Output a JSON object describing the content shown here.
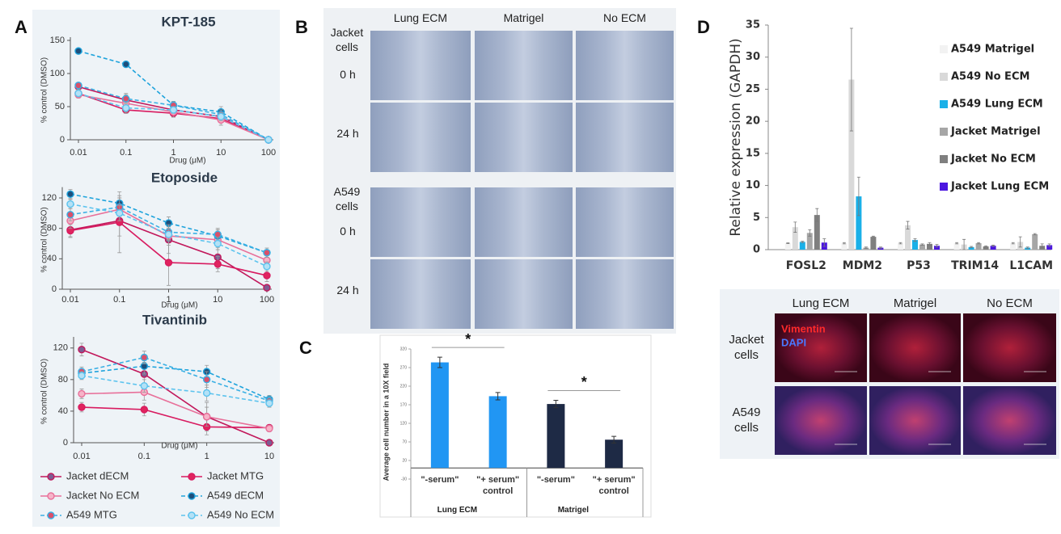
{
  "panel_labels": [
    "A",
    "B",
    "C",
    "D"
  ],
  "panel_a_legend": [
    {
      "name": "Jacket dECM",
      "color": "#c2185b",
      "marker": "#7e5d92",
      "dashed": false
    },
    {
      "name": "Jacket MTG",
      "color": "#d81b60",
      "marker": "#e0245e",
      "dashed": false
    },
    {
      "name": "Jacket No ECM",
      "color": "#e8709a",
      "marker": "#f6b3c8",
      "dashed": false
    },
    {
      "name": "A549 dECM",
      "color": "#1ea3dc",
      "marker": "#1d4f7c",
      "dashed": true
    },
    {
      "name": "A549 MTG",
      "color": "#3bb0e4",
      "marker": "#d9506a",
      "dashed": true
    },
    {
      "name": "A549 No ECM",
      "color": "#5cc3ee",
      "marker": "#b4e1f6",
      "dashed": true
    }
  ],
  "chart_data": [
    {
      "type": "line",
      "title": "KPT-185",
      "x_label": "Drug (μM)",
      "y_label": "% control (DMSO)",
      "x": [
        0.01,
        0.1,
        1,
        10,
        100
      ],
      "xlim": [
        0.01,
        100
      ],
      "xticks": [
        0.01,
        0.1,
        1,
        10,
        100
      ],
      "log_x": true,
      "ylim": [
        0,
        150
      ],
      "yticks": [
        0,
        50,
        100,
        150
      ],
      "series": [
        {
          "values": [
            80,
            60,
            45,
            35,
            0
          ],
          "errors": [
            5,
            8,
            6,
            5,
            0
          ]
        },
        {
          "values": [
            70,
            45,
            40,
            32,
            0
          ],
          "errors": [
            6,
            5,
            5,
            6,
            0
          ]
        },
        {
          "values": [
            68,
            55,
            42,
            30,
            0
          ],
          "errors": [
            5,
            15,
            8,
            8,
            0
          ]
        },
        {
          "values": [
            134,
            114,
            52,
            42,
            0
          ],
          "errors": [
            4,
            3,
            6,
            8,
            0
          ]
        },
        {
          "values": [
            82,
            62,
            52,
            38,
            0
          ],
          "errors": [
            4,
            6,
            5,
            7,
            0
          ]
        },
        {
          "values": [
            70,
            48,
            45,
            35,
            0
          ],
          "errors": [
            5,
            6,
            5,
            6,
            0
          ]
        }
      ]
    },
    {
      "type": "line",
      "title": "Etoposide",
      "x_label": "Drug (μM)",
      "y_label": "% control (DMSO)",
      "x": [
        0.01,
        0.1,
        1,
        10,
        100
      ],
      "xlim": [
        0.01,
        100
      ],
      "xticks": [
        0.01,
        0.1,
        1,
        10,
        100
      ],
      "log_x": true,
      "ylim": [
        0,
        130
      ],
      "yticks": [
        0,
        40,
        80,
        120
      ],
      "series": [
        {
          "values": [
            78,
            90,
            65,
            42,
            2
          ],
          "errors": [
            10,
            20,
            18,
            15,
            4
          ]
        },
        {
          "values": [
            77,
            88,
            35,
            33,
            18
          ],
          "errors": [
            8,
            40,
            30,
            10,
            8
          ]
        },
        {
          "values": [
            90,
            105,
            70,
            65,
            38
          ],
          "errors": [
            10,
            15,
            12,
            10,
            8
          ]
        },
        {
          "values": [
            125,
            113,
            87,
            70,
            48
          ],
          "errors": [
            6,
            10,
            8,
            8,
            6
          ]
        },
        {
          "values": [
            98,
            108,
            75,
            72,
            48
          ],
          "errors": [
            8,
            12,
            10,
            8,
            6
          ]
        },
        {
          "values": [
            112,
            100,
            72,
            60,
            30
          ],
          "errors": [
            6,
            10,
            8,
            8,
            6
          ]
        }
      ]
    },
    {
      "type": "line",
      "title": "Tivantinib",
      "x_label": "Drug (μM)",
      "y_label": "% control (DMSO)",
      "x": [
        0.01,
        0.1,
        1,
        10
      ],
      "xlim": [
        0.01,
        10
      ],
      "xticks": [
        0.01,
        0.1,
        1,
        10
      ],
      "log_x": true,
      "ylim": [
        0,
        130
      ],
      "yticks": [
        0,
        40,
        80,
        120
      ],
      "series": [
        {
          "values": [
            118,
            87,
            33,
            0
          ],
          "errors": [
            8,
            15,
            18,
            0
          ]
        },
        {
          "values": [
            45,
            42,
            20,
            19
          ],
          "errors": [
            6,
            8,
            10,
            4
          ]
        },
        {
          "values": [
            62,
            64,
            33,
            18
          ],
          "errors": [
            6,
            10,
            12,
            4
          ]
        },
        {
          "values": [
            88,
            97,
            90,
            55
          ],
          "errors": [
            6,
            10,
            8,
            5
          ]
        },
        {
          "values": [
            90,
            108,
            80,
            53
          ],
          "errors": [
            6,
            8,
            10,
            5
          ]
        },
        {
          "values": [
            85,
            72,
            63,
            50
          ],
          "errors": [
            5,
            8,
            10,
            5
          ]
        }
      ]
    },
    {
      "type": "bar",
      "y_label": "Average cell number in a 10X field",
      "categories": [
        "\"-serum\"",
        "\"+ serum\" control",
        "\"-serum\"",
        "\"+ serum\" control"
      ],
      "groups": [
        "Lung ECM",
        "Matrigel"
      ],
      "values": [
        284,
        193,
        172,
        76
      ],
      "errors": [
        14,
        10,
        10,
        9
      ],
      "colors": [
        "#2196f3",
        "#2196f3",
        "#1e2a45",
        "#1e2a45"
      ],
      "ylim": [
        -30,
        320
      ],
      "yticks": [
        -30,
        20,
        70,
        120,
        170,
        220,
        270,
        320
      ],
      "annotations": [
        "*",
        "*"
      ]
    },
    {
      "type": "bar",
      "y_label": "Relative expression (GAPDH)",
      "categories": [
        "FOSL2",
        "MDM2",
        "P53",
        "TRIM14",
        "L1CAM"
      ],
      "ylim": [
        0,
        35
      ],
      "yticks": [
        0,
        5,
        10,
        15,
        20,
        25,
        30,
        35
      ],
      "legend": "top-right",
      "series": [
        {
          "name": "A549 Matrigel",
          "color": "#f2f2f2",
          "values": [
            1,
            1,
            1,
            1,
            1
          ],
          "errors": [
            0.05,
            0.1,
            0.1,
            0.1,
            0.1
          ]
        },
        {
          "name": "A549 No ECM",
          "color": "#d9d9d9",
          "values": [
            3.5,
            26.5,
            3.8,
            0.8,
            1.2
          ],
          "errors": [
            0.8,
            8,
            0.6,
            0.8,
            0.8
          ]
        },
        {
          "name": "A549 Lung ECM",
          "color": "#1ab0e8",
          "values": [
            1.2,
            8.3,
            1.5,
            0.4,
            0.3
          ],
          "errors": [
            0.1,
            3,
            0.2,
            0.1,
            0.1
          ]
        },
        {
          "name": "Jacket Matrigel",
          "color": "#a6a6a6",
          "values": [
            2.6,
            0.3,
            0.8,
            1.0,
            2.4
          ],
          "errors": [
            0.5,
            0.1,
            0.1,
            0.1,
            0.1
          ]
        },
        {
          "name": "Jacket No ECM",
          "color": "#7f7f7f",
          "values": [
            5.4,
            2.0,
            0.9,
            0.5,
            0.6
          ],
          "errors": [
            1.0,
            0.1,
            0.2,
            0.1,
            0.3
          ]
        },
        {
          "name": "Jacket Lung ECM",
          "color": "#4b16e0",
          "values": [
            1.1,
            0.3,
            0.6,
            0.6,
            0.7
          ],
          "errors": [
            0.6,
            0.1,
            0.2,
            0.1,
            0.2
          ]
        }
      ]
    }
  ],
  "scratch_assay": {
    "columns": [
      "Lung ECM",
      "Matrigel",
      "No ECM"
    ],
    "row_groups": [
      {
        "label": "Jacket cells",
        "timepoints": [
          "0 h",
          "24 h"
        ]
      },
      {
        "label": "A549 cells",
        "timepoints": [
          "0 h",
          "24 h"
        ]
      }
    ]
  },
  "immunofluorescence": {
    "columns": [
      "Lung ECM",
      "Matrigel",
      "No ECM"
    ],
    "rows": [
      "Jacket cells",
      "A549 cells"
    ],
    "stains": [
      {
        "label": "Vimentin",
        "color": "#ff2a2a"
      },
      {
        "label": "DAPI",
        "color": "#4a78ff"
      }
    ]
  }
}
